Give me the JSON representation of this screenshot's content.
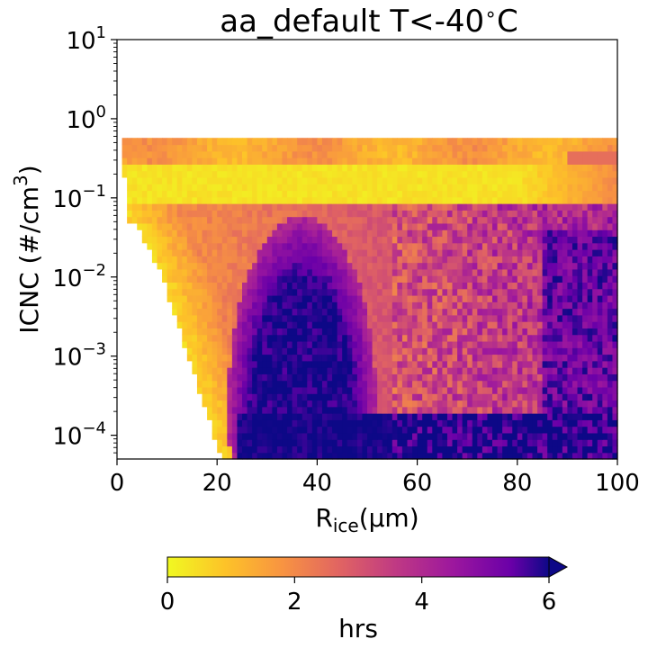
{
  "chart_data": {
    "type": "heatmap",
    "title_main": "aa_default T<-40",
    "title_deg": "∘",
    "title_unit": "C",
    "xlabel_main": "R",
    "xlabel_sub": "ice",
    "xlabel_unit": "(μm)",
    "ylabel_main": "ICNC (#/cm",
    "ylabel_sup": "3",
    "ylabel_end": ")",
    "xlim": [
      0,
      100
    ],
    "ylim_log10": [
      -4.3,
      1
    ],
    "y_scale": "log",
    "x_ticks": [
      "0",
      "20",
      "40",
      "60",
      "80",
      "100"
    ],
    "x_tick_values": [
      0,
      20,
      40,
      60,
      80,
      100
    ],
    "y_tick_values": [
      1,
      0,
      -1,
      -2,
      -3,
      -4
    ],
    "y_ticks": [
      {
        "base": "10",
        "exp": "1"
      },
      {
        "base": "10",
        "exp": "0"
      },
      {
        "base": "10",
        "exp": "−1"
      },
      {
        "base": "10",
        "exp": "−2"
      },
      {
        "base": "10",
        "exp": "−3"
      },
      {
        "base": "10",
        "exp": "−4"
      }
    ],
    "colormap": "plasma_r",
    "colorbar": {
      "label": "hrs",
      "ticks": [
        "0",
        "2",
        "4",
        "6"
      ],
      "tick_values": [
        0,
        2,
        4,
        6
      ],
      "range": [
        0,
        6
      ],
      "extend": "max",
      "orientation": "horizontal"
    },
    "grid": false,
    "legend": "none"
  }
}
